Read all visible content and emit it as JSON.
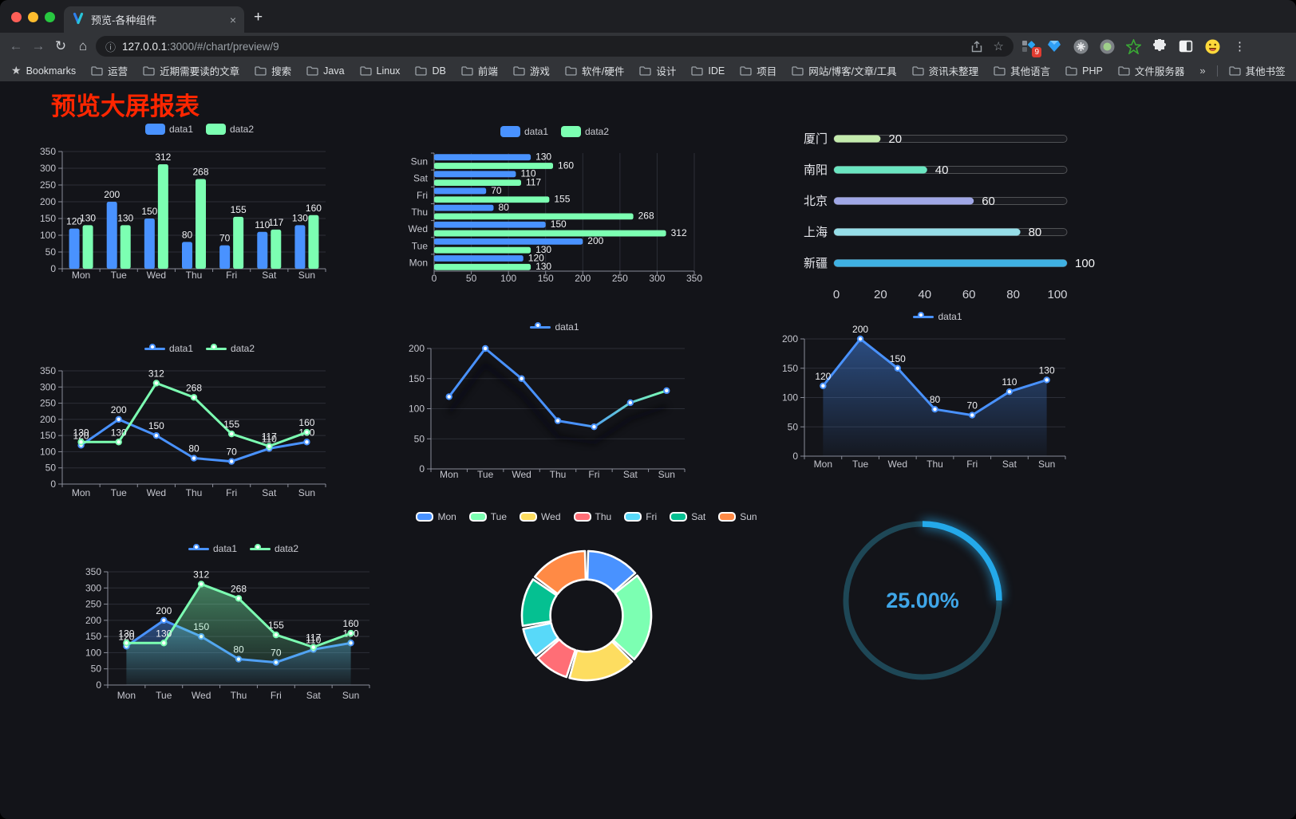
{
  "browser": {
    "tab": {
      "title": "预览-各种组件",
      "close_icon": "×"
    },
    "new_tab_icon": "+",
    "url": {
      "host": "127.0.0.1",
      "rest": ":3000/#/chart/preview/9"
    },
    "bookmarks_label": "Bookmarks",
    "bookmark_folders": [
      "运营",
      "近期需要读的文章",
      "搜索",
      "Java",
      "Linux",
      "DB",
      "前端",
      "游戏",
      "软件/硬件",
      "设计",
      "IDE",
      "项目",
      "网站/博客/文章/工具",
      "资讯未整理",
      "其他语言",
      "PHP",
      "文件服务器"
    ],
    "bookmarks_overflow": "»",
    "other_bookmarks": "其他书签",
    "extension_badge": "9"
  },
  "page": {
    "title": "预览大屏报表"
  },
  "chart_data": [
    {
      "id": "bar-vertical",
      "type": "bar",
      "orientation": "vertical",
      "categories": [
        "Mon",
        "Tue",
        "Wed",
        "Thu",
        "Fri",
        "Sat",
        "Sun"
      ],
      "series": [
        {
          "name": "data1",
          "color": "#4992ff",
          "values": [
            120,
            200,
            150,
            80,
            70,
            110,
            130
          ]
        },
        {
          "name": "data2",
          "color": "#7cffb2",
          "values": [
            130,
            130,
            312,
            268,
            155,
            117,
            160
          ]
        }
      ],
      "ylim": [
        0,
        350
      ],
      "ytick_step": 50,
      "value_labels": true,
      "legend_position": "top"
    },
    {
      "id": "bar-horizontal",
      "type": "bar",
      "orientation": "horizontal",
      "categories": [
        "Mon",
        "Tue",
        "Wed",
        "Thu",
        "Fri",
        "Sat",
        "Sun"
      ],
      "category_display_top_to_bottom": [
        "Sun",
        "Sat",
        "Fri",
        "Thu",
        "Wed",
        "Tue",
        "Mon"
      ],
      "series": [
        {
          "name": "data1",
          "color": "#4992ff",
          "values": [
            120,
            200,
            150,
            80,
            70,
            110,
            130
          ]
        },
        {
          "name": "data2",
          "color": "#7cffb2",
          "values": [
            130,
            130,
            312,
            268,
            155,
            117,
            160
          ]
        }
      ],
      "xlim": [
        0,
        350
      ],
      "xtick_step": 50,
      "value_labels": true,
      "legend_position": "top"
    },
    {
      "id": "city-progress",
      "type": "bar",
      "orientation": "progress",
      "categories": [
        "厦门",
        "南阳",
        "北京",
        "上海",
        "新疆"
      ],
      "values": [
        20,
        40,
        60,
        80,
        100
      ],
      "colors": [
        "#c4ebad",
        "#6be6c1",
        "#a0a7e6",
        "#96dee8",
        "#3fb1e3"
      ],
      "xlim": [
        0,
        100
      ],
      "xticks": [
        0,
        20,
        40,
        60,
        80,
        100
      ],
      "value_labels": true
    },
    {
      "id": "line-two-series",
      "type": "line",
      "categories": [
        "Mon",
        "Tue",
        "Wed",
        "Thu",
        "Fri",
        "Sat",
        "Sun"
      ],
      "series": [
        {
          "name": "data1",
          "color": "#4992ff",
          "values": [
            120,
            200,
            150,
            80,
            70,
            110,
            130
          ]
        },
        {
          "name": "data2",
          "color": "#7cffb2",
          "values": [
            130,
            130,
            312,
            268,
            155,
            117,
            160
          ]
        }
      ],
      "ylim": [
        0,
        350
      ],
      "ytick_step": 50,
      "value_labels": true,
      "legend_position": "top"
    },
    {
      "id": "line-gradient",
      "type": "line",
      "categories": [
        "Mon",
        "Tue",
        "Wed",
        "Thu",
        "Fri",
        "Sat",
        "Sun"
      ],
      "series": [
        {
          "name": "data1",
          "color": "#4992ff",
          "gradient_to": "#7cffb2",
          "values": [
            120,
            200,
            150,
            80,
            70,
            110,
            130
          ]
        }
      ],
      "ylim": [
        0,
        200
      ],
      "ytick_step": 50,
      "value_labels": false,
      "legend_position": "top"
    },
    {
      "id": "area-single",
      "type": "area",
      "categories": [
        "Mon",
        "Tue",
        "Wed",
        "Thu",
        "Fri",
        "Sat",
        "Sun"
      ],
      "series": [
        {
          "name": "data1",
          "color": "#4992ff",
          "area": true,
          "values": [
            120,
            200,
            150,
            80,
            70,
            110,
            130
          ]
        }
      ],
      "ylim": [
        0,
        200
      ],
      "ytick_step": 50,
      "value_labels": true,
      "legend_position": "top"
    },
    {
      "id": "area-two-series",
      "type": "area",
      "categories": [
        "Mon",
        "Tue",
        "Wed",
        "Thu",
        "Fri",
        "Sat",
        "Sun"
      ],
      "series": [
        {
          "name": "data1",
          "color": "#4992ff",
          "area": true,
          "values": [
            120,
            200,
            150,
            80,
            70,
            110,
            130
          ]
        },
        {
          "name": "data2",
          "color": "#7cffb2",
          "area": true,
          "values": [
            130,
            130,
            312,
            268,
            155,
            117,
            160
          ]
        }
      ],
      "ylim": [
        0,
        350
      ],
      "ytick_step": 50,
      "value_labels": true,
      "legend_position": "top"
    },
    {
      "id": "donut",
      "type": "pie",
      "categories": [
        "Mon",
        "Tue",
        "Wed",
        "Thu",
        "Fri",
        "Sat",
        "Sun"
      ],
      "values": [
        120,
        200,
        150,
        80,
        70,
        110,
        130
      ],
      "colors": [
        "#4992ff",
        "#7cffb2",
        "#fddd60",
        "#ff6e76",
        "#58d9f9",
        "#05c091",
        "#ff8a45"
      ],
      "inner_radius_ratio": 0.56,
      "legend_position": "top"
    },
    {
      "id": "gauge",
      "type": "gauge",
      "value": 25,
      "label": "25.00%",
      "color": "#24a9ea",
      "track_color": "#1e4756",
      "text_color": "#3fa6e8"
    }
  ]
}
